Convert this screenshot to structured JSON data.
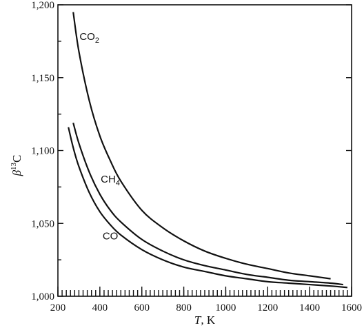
{
  "chart_data": {
    "type": "line",
    "title": "",
    "xlabel_italic": "T",
    "xlabel_rest": ", K",
    "ylabel_symbol": "β",
    "ylabel_sup": "13",
    "ylabel_tail": "C",
    "xlim": [
      200,
      1600
    ],
    "ylim": [
      1.0,
      1.2
    ],
    "x_ticks": [
      {
        "value": 200,
        "label": "200"
      },
      {
        "value": 400,
        "label": "400"
      },
      {
        "value": 600,
        "label": "600"
      },
      {
        "value": 800,
        "label": "800"
      },
      {
        "value": 1000,
        "label": "1000"
      },
      {
        "value": 1200,
        "label": "1200"
      },
      {
        "value": 1400,
        "label": "1400"
      },
      {
        "value": 1600,
        "label": "1600"
      }
    ],
    "y_ticks": [
      {
        "value": 1.0,
        "label": "1,000"
      },
      {
        "value": 1.05,
        "label": "1,050"
      },
      {
        "value": 1.1,
        "label": "1,100"
      },
      {
        "value": 1.15,
        "label": "1,150"
      },
      {
        "value": 1.2,
        "label": "1,200"
      }
    ],
    "grid": false,
    "series": [
      {
        "name": "CO2",
        "label_main": "CO",
        "label_sub": "2",
        "label_at": {
          "x": 350,
          "y": 1.176
        },
        "points": [
          [
            273,
            1.195
          ],
          [
            300,
            1.168
          ],
          [
            350,
            1.134
          ],
          [
            400,
            1.11
          ],
          [
            450,
            1.093
          ],
          [
            500,
            1.079
          ],
          [
            600,
            1.059
          ],
          [
            700,
            1.047
          ],
          [
            800,
            1.038
          ],
          [
            900,
            1.031
          ],
          [
            1000,
            1.026
          ],
          [
            1100,
            1.022
          ],
          [
            1200,
            1.019
          ],
          [
            1300,
            1.016
          ],
          [
            1400,
            1.014
          ],
          [
            1500,
            1.012
          ]
        ]
      },
      {
        "name": "CH4",
        "label_main": "CH",
        "label_sub": "4",
        "label_at": {
          "x": 450,
          "y": 1.078
        },
        "points": [
          [
            273,
            1.119
          ],
          [
            300,
            1.105
          ],
          [
            350,
            1.085
          ],
          [
            400,
            1.07
          ],
          [
            450,
            1.059
          ],
          [
            500,
            1.051
          ],
          [
            600,
            1.039
          ],
          [
            700,
            1.031
          ],
          [
            800,
            1.025
          ],
          [
            900,
            1.021
          ],
          [
            1000,
            1.018
          ],
          [
            1100,
            1.015
          ],
          [
            1200,
            1.013
          ],
          [
            1300,
            1.011
          ],
          [
            1400,
            1.01
          ],
          [
            1500,
            1.009
          ],
          [
            1560,
            1.008
          ]
        ]
      },
      {
        "name": "CO",
        "label_main": "CO",
        "label_sub": "",
        "label_at": {
          "x": 450,
          "y": 1.039
        },
        "points": [
          [
            250,
            1.116
          ],
          [
            273,
            1.102
          ],
          [
            300,
            1.089
          ],
          [
            350,
            1.071
          ],
          [
            400,
            1.058
          ],
          [
            450,
            1.049
          ],
          [
            500,
            1.042
          ],
          [
            600,
            1.032
          ],
          [
            700,
            1.025
          ],
          [
            800,
            1.02
          ],
          [
            900,
            1.017
          ],
          [
            1000,
            1.014
          ],
          [
            1100,
            1.012
          ],
          [
            1200,
            1.01
          ],
          [
            1300,
            1.009
          ],
          [
            1400,
            1.008
          ],
          [
            1500,
            1.007
          ],
          [
            1580,
            1.006
          ]
        ]
      }
    ]
  }
}
